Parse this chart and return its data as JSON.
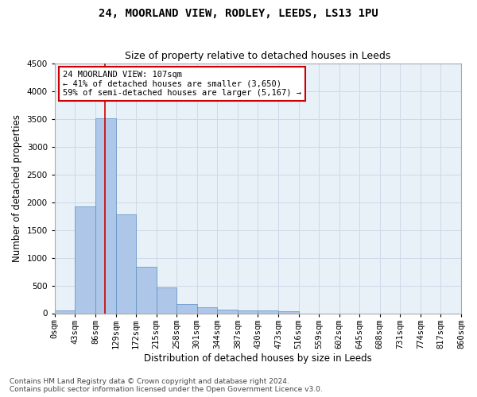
{
  "title1": "24, MOORLAND VIEW, RODLEY, LEEDS, LS13 1PU",
  "title2": "Size of property relative to detached houses in Leeds",
  "xlabel": "Distribution of detached houses by size in Leeds",
  "ylabel": "Number of detached properties",
  "bin_labels": [
    "0sqm",
    "43sqm",
    "86sqm",
    "129sqm",
    "172sqm",
    "215sqm",
    "258sqm",
    "301sqm",
    "344sqm",
    "387sqm",
    "430sqm",
    "473sqm",
    "516sqm",
    "559sqm",
    "602sqm",
    "645sqm",
    "688sqm",
    "731sqm",
    "774sqm",
    "817sqm",
    "860sqm"
  ],
  "bar_heights": [
    50,
    1920,
    3510,
    1780,
    840,
    460,
    165,
    105,
    65,
    55,
    45,
    35,
    0,
    0,
    0,
    0,
    0,
    0,
    0,
    0
  ],
  "bar_color": "#aec6e8",
  "bar_edge_color": "#5a8fc2",
  "property_size": 107,
  "bin_width": 43,
  "annotation_line1": "24 MOORLAND VIEW: 107sqm",
  "annotation_line2": "← 41% of detached houses are smaller (3,650)",
  "annotation_line3": "59% of semi-detached houses are larger (5,167) →",
  "annotation_box_color": "#ffffff",
  "annotation_border_color": "#cc0000",
  "vline_color": "#cc0000",
  "ylim": [
    0,
    4500
  ],
  "yticks": [
    0,
    500,
    1000,
    1500,
    2000,
    2500,
    3000,
    3500,
    4000,
    4500
  ],
  "footer1": "Contains HM Land Registry data © Crown copyright and database right 2024.",
  "footer2": "Contains public sector information licensed under the Open Government Licence v3.0.",
  "bg_color": "#ffffff",
  "grid_color": "#d0d8e8",
  "title1_fontsize": 10,
  "title2_fontsize": 9,
  "axis_label_fontsize": 8.5,
  "tick_fontsize": 7.5,
  "annotation_fontsize": 7.5,
  "footer_fontsize": 6.5
}
